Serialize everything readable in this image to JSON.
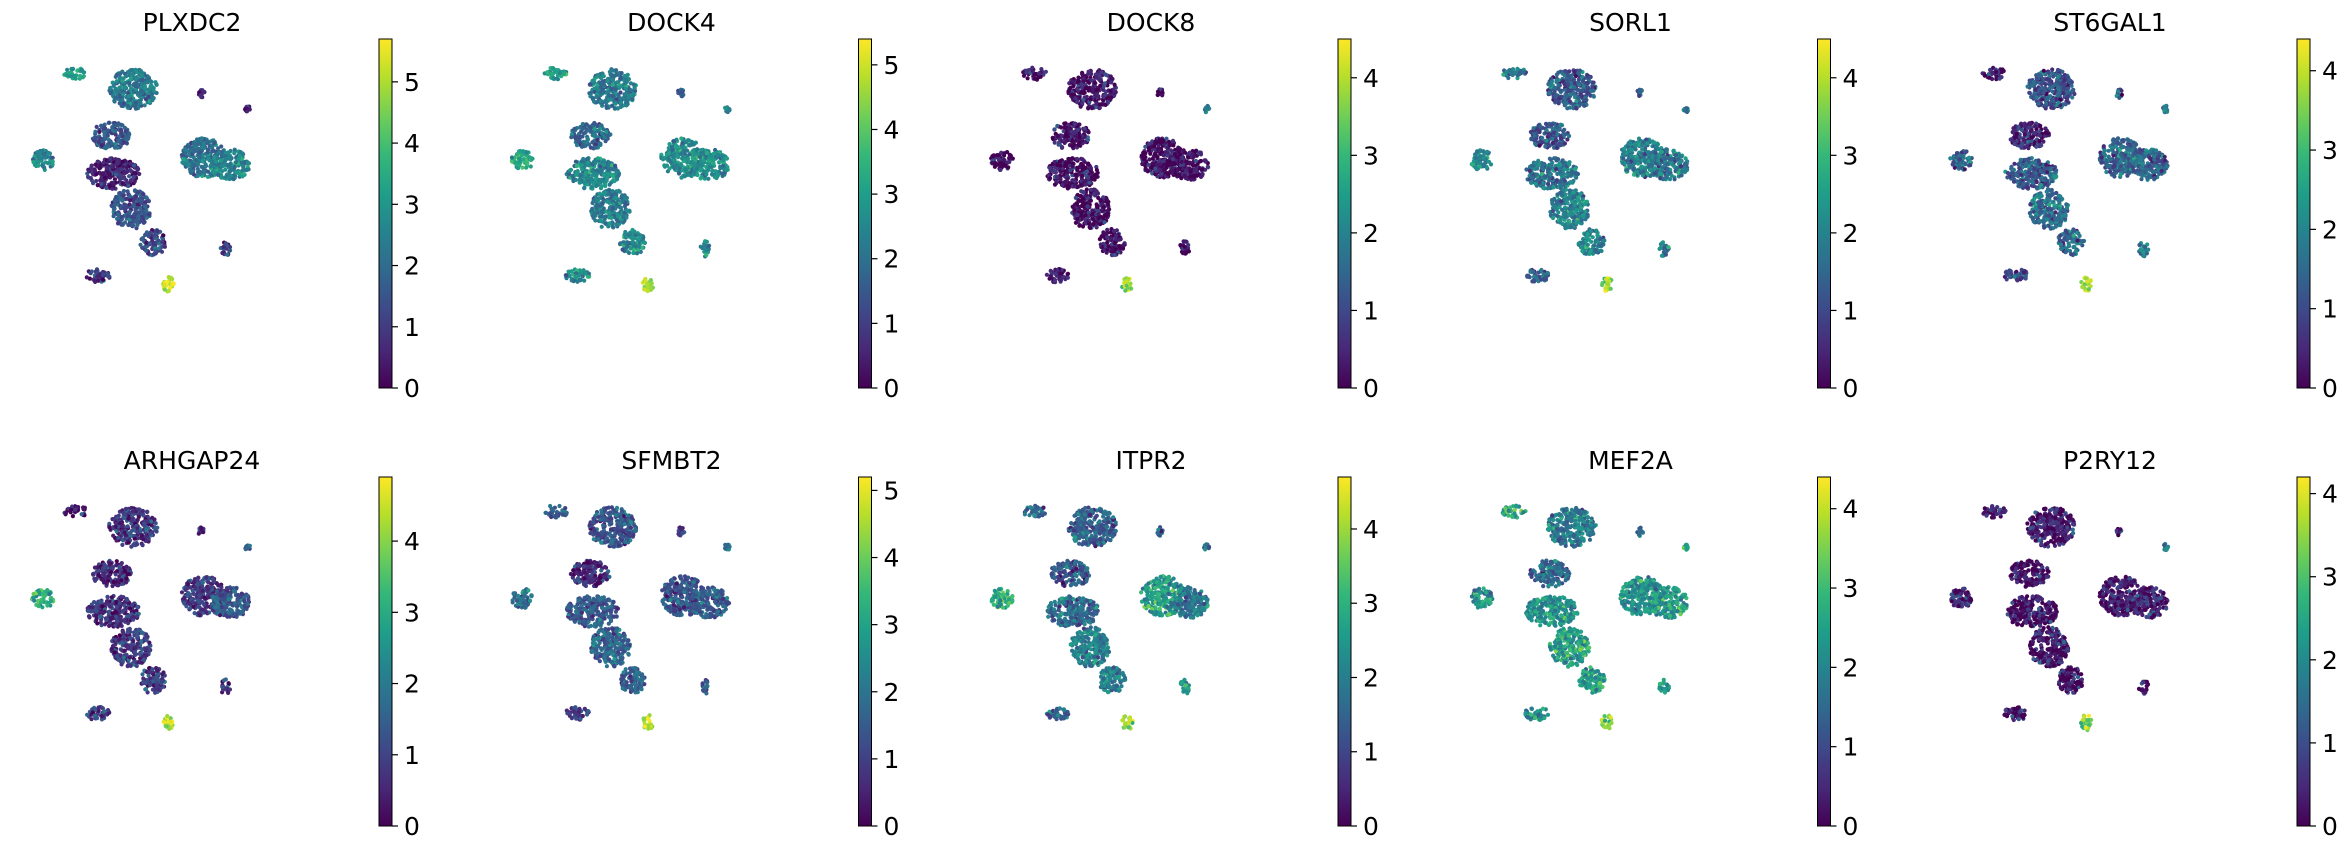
{
  "figure": {
    "rows": 2,
    "cols": 5,
    "colormap": "viridis"
  },
  "colormap_stops": [
    "#440154",
    "#482878",
    "#3e4989",
    "#31688e",
    "#26828e",
    "#1f9e89",
    "#35b779",
    "#6ece58",
    "#b5de2b",
    "#fde725"
  ],
  "chart_data": [
    {
      "type": "scatter",
      "title": "PLXDC2",
      "colorbar_max": 5.7,
      "colorbar_ticks": [
        "0",
        "1",
        "2",
        "3",
        "4",
        "5"
      ],
      "cluster_levels": [
        3.2,
        2.3,
        1.5,
        0.8,
        0.3,
        2.7,
        0.5,
        1.5,
        1.2,
        2.2,
        2.6,
        5.2,
        0.9,
        1.0
      ]
    },
    {
      "type": "scatter",
      "title": "DOCK4",
      "colorbar_max": 5.4,
      "colorbar_ticks": [
        "0",
        "1",
        "2",
        "3",
        "4",
        "5"
      ],
      "cluster_levels": [
        3.0,
        2.2,
        1.8,
        2.3,
        1.9,
        3.3,
        2.5,
        2.3,
        2.5,
        2.6,
        2.7,
        4.7,
        2.4,
        2.8
      ]
    },
    {
      "type": "scatter",
      "title": "DOCK8",
      "colorbar_max": 4.5,
      "colorbar_ticks": [
        "0",
        "1",
        "2",
        "3",
        "4"
      ],
      "cluster_levels": [
        0.2,
        0.2,
        0.2,
        1.8,
        0.2,
        0.2,
        0.2,
        0.2,
        0.2,
        0.2,
        0.2,
        3.8,
        0.2,
        0.2
      ]
    },
    {
      "type": "scatter",
      "title": "SORL1",
      "colorbar_max": 4.5,
      "colorbar_ticks": [
        "0",
        "1",
        "2",
        "3",
        "4"
      ],
      "cluster_levels": [
        1.8,
        1.3,
        1.2,
        2.0,
        1.4,
        2.2,
        1.8,
        2.0,
        2.0,
        1.9,
        1.8,
        3.9,
        1.5,
        1.8
      ]
    },
    {
      "type": "scatter",
      "title": "ST6GAL1",
      "colorbar_max": 4.4,
      "colorbar_ticks": [
        "0",
        "1",
        "2",
        "3",
        "4"
      ],
      "cluster_levels": [
        0.4,
        1.1,
        0.5,
        1.8,
        1.1,
        1.4,
        1.3,
        1.6,
        1.5,
        1.5,
        1.5,
        3.9,
        0.9,
        1.8
      ]
    },
    {
      "type": "scatter",
      "title": "ARHGAP24",
      "colorbar_max": 4.9,
      "colorbar_ticks": [
        "0",
        "1",
        "2",
        "3",
        "4"
      ],
      "cluster_levels": [
        0.4,
        0.8,
        0.6,
        1.8,
        0.6,
        3.1,
        0.7,
        0.8,
        0.9,
        0.9,
        1.4,
        4.3,
        0.8,
        1.0
      ]
    },
    {
      "type": "scatter",
      "title": "SFMBT2",
      "colorbar_max": 5.2,
      "colorbar_ticks": [
        "0",
        "1",
        "2",
        "3",
        "4",
        "5"
      ],
      "cluster_levels": [
        1.6,
        1.4,
        0.6,
        2.2,
        0.9,
        1.9,
        1.5,
        1.7,
        1.6,
        1.4,
        1.6,
        4.5,
        1.0,
        1.2
      ]
    },
    {
      "type": "scatter",
      "title": "ITPR2",
      "colorbar_max": 4.7,
      "colorbar_ticks": [
        "0",
        "1",
        "2",
        "3",
        "4"
      ],
      "cluster_levels": [
        1.6,
        1.5,
        1.2,
        1.8,
        1.5,
        3.0,
        1.7,
        2.0,
        2.1,
        2.6,
        2.0,
        3.9,
        1.6,
        2.3
      ]
    },
    {
      "type": "scatter",
      "title": "MEF2A",
      "colorbar_max": 4.4,
      "colorbar_ticks": [
        "0",
        "1",
        "2",
        "3",
        "4"
      ],
      "cluster_levels": [
        2.5,
        1.8,
        1.5,
        2.4,
        1.8,
        2.3,
        2.3,
        2.5,
        2.4,
        2.2,
        2.4,
        3.7,
        2.0,
        2.4
      ]
    },
    {
      "type": "scatter",
      "title": "P2RY12",
      "colorbar_max": 4.2,
      "colorbar_ticks": [
        "0",
        "1",
        "2",
        "3",
        "4"
      ],
      "cluster_levels": [
        0.2,
        0.3,
        0.2,
        2.3,
        0.2,
        0.5,
        0.2,
        0.3,
        0.3,
        0.3,
        0.4,
        3.5,
        0.2,
        0.3
      ]
    }
  ]
}
